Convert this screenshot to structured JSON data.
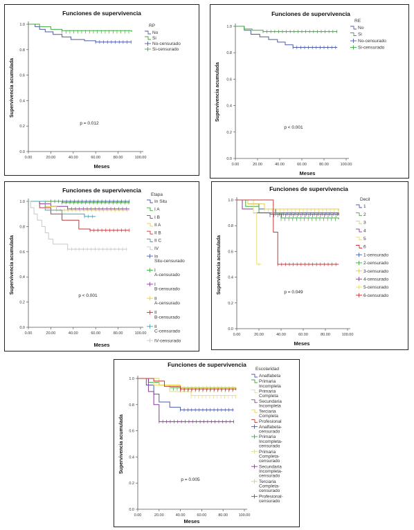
{
  "chart_data": [
    {
      "type": "line",
      "title": "Funciones de supervivencia",
      "xlabel": "Meses",
      "ylabel": "Supervivencia acumulada",
      "xlim": [
        0,
        100
      ],
      "ylim": [
        0,
        1.0
      ],
      "xticks": [
        "0.00",
        "20.00",
        "40.00",
        "60.00",
        "80.00",
        "100.00"
      ],
      "yticks": [
        "0.0",
        "0.2",
        "0.4",
        "0.6",
        "0.8",
        "1.0"
      ],
      "legend_title": "RP",
      "legend_items": [
        "No",
        "Si",
        "No-censurado",
        "Si-censurado"
      ],
      "annotation": "p = 0.012",
      "colors": {
        "No": "#4a5aa8",
        "Si": "#3aaa3a"
      },
      "series": [
        {
          "name": "No",
          "points": [
            [
              0,
              1
            ],
            [
              6,
              0.98
            ],
            [
              10,
              0.96
            ],
            [
              15,
              0.94
            ],
            [
              22,
              0.92
            ],
            [
              30,
              0.9
            ],
            [
              38,
              0.88
            ],
            [
              50,
              0.87
            ],
            [
              60,
              0.86
            ],
            [
              92,
              0.86
            ]
          ]
        },
        {
          "name": "Si",
          "points": [
            [
              0,
              1
            ],
            [
              10,
              0.98
            ],
            [
              20,
              0.96
            ],
            [
              30,
              0.95
            ],
            [
              92,
              0.94
            ]
          ]
        }
      ]
    },
    {
      "type": "line",
      "title": "Funciones de supervivencia",
      "xlabel": "Meses",
      "ylabel": "Supervivencia acumulada",
      "xlim": [
        0,
        100
      ],
      "ylim": [
        0,
        1.0
      ],
      "xticks": [
        "0.00",
        "20.00",
        "40.00",
        "60.00",
        "80.00",
        "100.00"
      ],
      "yticks": [
        "0.0",
        "0.2",
        "0.4",
        "0.6",
        "0.8",
        "1.0"
      ],
      "legend_title": "RE",
      "legend_items": [
        "No",
        "Si",
        "No-censurado",
        "Si-censurado"
      ],
      "annotation": "p < 0.001",
      "colors": {
        "No": "#4a5aa8",
        "Si": "#3aaa3a"
      },
      "series": [
        {
          "name": "No",
          "points": [
            [
              0,
              1
            ],
            [
              8,
              0.97
            ],
            [
              14,
              0.94
            ],
            [
              22,
              0.92
            ],
            [
              30,
              0.9
            ],
            [
              38,
              0.88
            ],
            [
              45,
              0.86
            ],
            [
              52,
              0.84
            ],
            [
              92,
              0.84
            ]
          ]
        },
        {
          "name": "Si",
          "points": [
            [
              0,
              1
            ],
            [
              8,
              0.98
            ],
            [
              15,
              0.97
            ],
            [
              25,
              0.96
            ],
            [
              92,
              0.96
            ]
          ]
        }
      ]
    },
    {
      "type": "line",
      "title": "Funciones de supervivencia",
      "xlabel": "Meses",
      "ylabel": "Supervivencia acumulada",
      "xlim": [
        0,
        100
      ],
      "ylim": [
        0,
        1.0
      ],
      "xticks": [
        "0.00",
        "20.00",
        "40.00",
        "60.00",
        "80.00",
        "100.00"
      ],
      "yticks": [
        "0.0",
        "0.2",
        "0.4",
        "0.6",
        "0.8",
        "1.0"
      ],
      "legend_title": "Etapa",
      "legend_items": [
        "In Situ",
        "I A",
        "I B",
        "II A",
        "II B",
        "II C",
        "IV",
        "In Situ-censurado",
        "I A-censurado",
        "I B-censurado",
        "II A-censurado",
        "II B-censurado",
        "II C-censurado",
        "IV-censurado"
      ],
      "annotation": "p < 0.001",
      "colors": {
        "In Situ": "#4a5aa8",
        "I A": "#3aaa3a",
        "I B": "#8a3a9a",
        "II A": "#e0d050",
        "II B": "#c03838",
        "II C": "#3aa8b8",
        "IV": "#c8c8c8"
      },
      "series": [
        {
          "name": "In Situ",
          "points": [
            [
              0,
              1
            ],
            [
              90,
              1
            ]
          ]
        },
        {
          "name": "I A",
          "points": [
            [
              0,
              1
            ],
            [
              30,
              0.99
            ],
            [
              90,
              0.99
            ]
          ]
        },
        {
          "name": "I B",
          "points": [
            [
              0,
              1
            ],
            [
              10,
              0.98
            ],
            [
              20,
              0.96
            ],
            [
              35,
              0.94
            ],
            [
              90,
              0.94
            ]
          ]
        },
        {
          "name": "II A",
          "points": [
            [
              0,
              1
            ],
            [
              15,
              0.96
            ],
            [
              25,
              0.93
            ],
            [
              90,
              0.93
            ]
          ]
        },
        {
          "name": "II B",
          "points": [
            [
              0,
              1
            ],
            [
              10,
              0.95
            ],
            [
              20,
              0.9
            ],
            [
              30,
              0.85
            ],
            [
              45,
              0.78
            ],
            [
              55,
              0.77
            ],
            [
              90,
              0.77
            ]
          ]
        },
        {
          "name": "II C",
          "points": [
            [
              0,
              1
            ],
            [
              15,
              0.93
            ],
            [
              30,
              0.9
            ],
            [
              50,
              0.88
            ],
            [
              60,
              0.88
            ]
          ]
        },
        {
          "name": "IV",
          "points": [
            [
              0,
              1
            ],
            [
              2,
              0.95
            ],
            [
              5,
              0.9
            ],
            [
              8,
              0.85
            ],
            [
              12,
              0.8
            ],
            [
              15,
              0.75
            ],
            [
              18,
              0.7
            ],
            [
              22,
              0.66
            ],
            [
              35,
              0.62
            ],
            [
              88,
              0.62
            ]
          ]
        }
      ]
    },
    {
      "type": "line",
      "title": "Funciones de supervivencia",
      "xlabel": "Meses",
      "ylabel": "Supervivencia acumulada",
      "xlim": [
        0,
        100
      ],
      "ylim": [
        0,
        1.0
      ],
      "xticks": [
        "0.00",
        "20.00",
        "40.00",
        "60.00",
        "80.00",
        "100.00"
      ],
      "yticks": [
        "0.0",
        "0.2",
        "0.4",
        "0.6",
        "0.8",
        "1.0"
      ],
      "legend_title": "Decil",
      "legend_items": [
        "1",
        "2",
        "3",
        "4",
        "5",
        "6",
        "1-censurado",
        "2-censurado",
        "3-censurado",
        "4-censurado",
        "5-censurado",
        "6-censurado"
      ],
      "annotation": "p = 0.049",
      "colors": {
        "1": "#4a5aa8",
        "2": "#3aaa3a",
        "3": "#e0d050",
        "4": "#8a3a9a",
        "5": "#e8dc70",
        "6": "#c03838"
      },
      "series": [
        {
          "name": "1",
          "points": [
            [
              0,
              1
            ],
            [
              10,
              0.97
            ],
            [
              20,
              0.93
            ],
            [
              35,
              0.9
            ],
            [
              92,
              0.89
            ]
          ]
        },
        {
          "name": "2",
          "points": [
            [
              0,
              1
            ],
            [
              8,
              0.95
            ],
            [
              20,
              0.9
            ],
            [
              40,
              0.86
            ],
            [
              92,
              0.85
            ]
          ]
        },
        {
          "name": "3",
          "points": [
            [
              0,
              1
            ],
            [
              10,
              0.97
            ],
            [
              25,
              0.93
            ],
            [
              92,
              0.92
            ]
          ]
        },
        {
          "name": "4",
          "points": [
            [
              0,
              1
            ],
            [
              5,
              0.93
            ],
            [
              15,
              0.9
            ],
            [
              30,
              0.89
            ],
            [
              92,
              0.88
            ]
          ]
        },
        {
          "name": "5",
          "points": [
            [
              0,
              1
            ],
            [
              15,
              0.9
            ],
            [
              18,
              0.5
            ],
            [
              22,
              0.5
            ]
          ]
        },
        {
          "name": "6",
          "points": [
            [
              0,
              1
            ],
            [
              30,
              1
            ],
            [
              33,
              0.75
            ],
            [
              37,
              0.5
            ],
            [
              92,
              0.5
            ]
          ]
        }
      ]
    },
    {
      "type": "line",
      "title": "Funciones de supervivencia",
      "xlabel": "Meses",
      "ylabel": "Supervivencia acumulada",
      "xlim": [
        0,
        100
      ],
      "ylim": [
        0,
        1.0
      ],
      "xticks": [
        "0.00",
        "20.00",
        "40.00",
        "60.00",
        "80.00",
        "100.00"
      ],
      "yticks": [
        "0.0",
        "0.2",
        "0.4",
        "0.6",
        "0.8",
        "1.0"
      ],
      "legend_title": "Escolaridad",
      "legend_items": [
        "Analfabeta",
        "Primaria Incompleta",
        "Primaria Completa",
        "Secundaria Incompleta",
        "Terciaria Completa",
        "Profesional",
        "Analfabeta-censurado",
        "Primaria Incompleta-censurado",
        "Primaria Completa-censurado",
        "Secundaria Incompleta-censurado",
        "Terciaria Completa-censurado",
        "Profesional-censurado"
      ],
      "annotation": "p = 0.005",
      "colors": {
        "Analfabeta": "#4a5aa8",
        "Primaria Incompleta": "#3aaa3a",
        "Primaria Completa": "#e8dc70",
        "Secundaria Incompleta": "#8a3a9a",
        "Terciaria Completa": "#e0d050",
        "Profesional": "#c03838"
      },
      "series": [
        {
          "name": "Analfabeta",
          "points": [
            [
              0,
              1
            ],
            [
              8,
              0.95
            ],
            [
              15,
              0.88
            ],
            [
              20,
              0.82
            ],
            [
              30,
              0.78
            ],
            [
              40,
              0.76
            ],
            [
              90,
              0.76
            ]
          ]
        },
        {
          "name": "Primaria Incompleta",
          "points": [
            [
              0,
              1
            ],
            [
              10,
              0.97
            ],
            [
              20,
              0.95
            ],
            [
              30,
              0.93
            ],
            [
              92,
              0.92
            ]
          ]
        },
        {
          "name": "Primaria Completa",
          "points": [
            [
              0,
              1
            ],
            [
              15,
              0.95
            ],
            [
              30,
              0.9
            ],
            [
              50,
              0.87
            ],
            [
              92,
              0.86
            ]
          ]
        },
        {
          "name": "Secundaria Incompleta",
          "points": [
            [
              0,
              1
            ],
            [
              10,
              0.9
            ],
            [
              15,
              0.8
            ],
            [
              20,
              0.67
            ],
            [
              90,
              0.67
            ]
          ]
        },
        {
          "name": "Terciaria Completa",
          "points": [
            [
              0,
              1
            ],
            [
              20,
              0.95
            ],
            [
              40,
              0.93
            ],
            [
              92,
              0.93
            ]
          ]
        },
        {
          "name": "Profesional",
          "points": [
            [
              0,
              1
            ],
            [
              15,
              0.98
            ],
            [
              25,
              0.94
            ],
            [
              40,
              0.92
            ],
            [
              92,
              0.91
            ]
          ]
        }
      ]
    }
  ]
}
